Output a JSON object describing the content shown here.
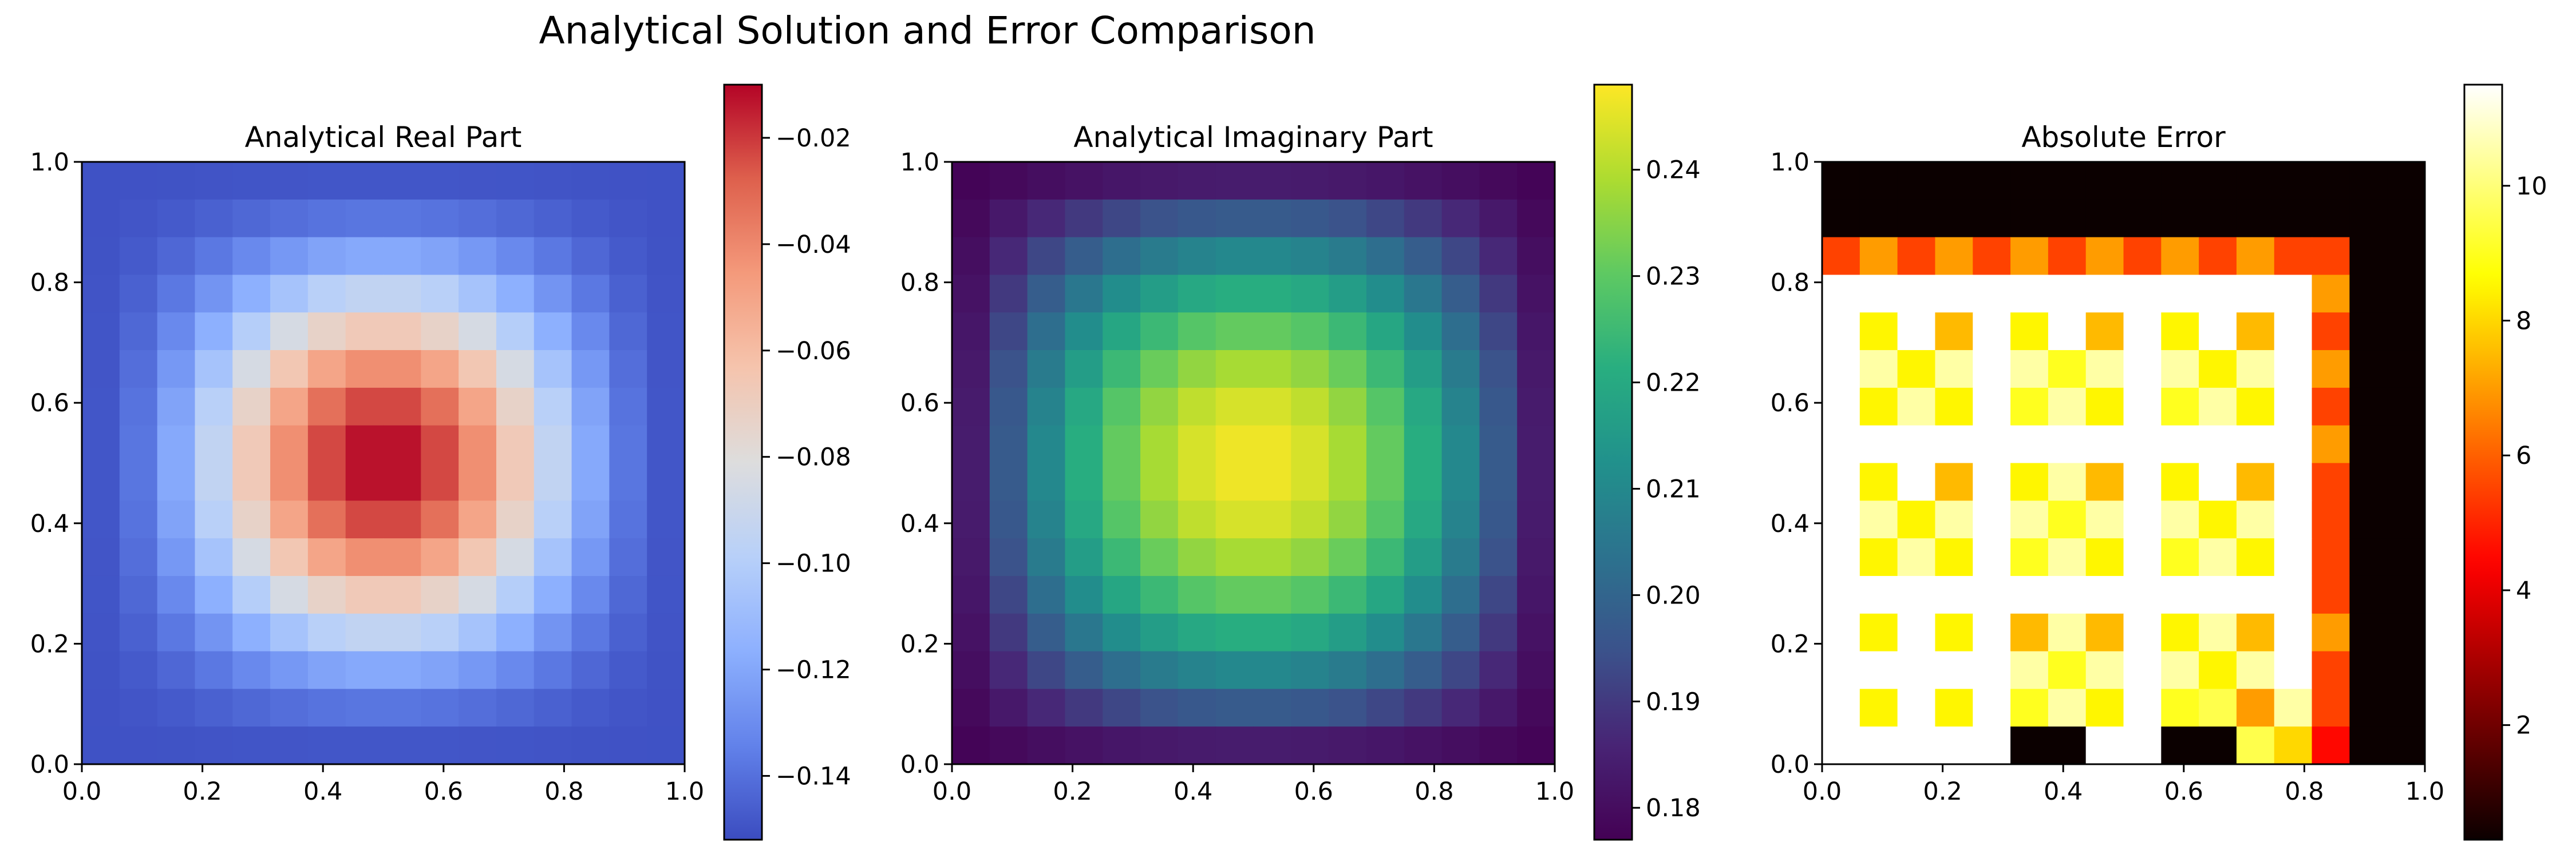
{
  "suptitle": "Analytical Solution and Error Comparison",
  "chart_data": [
    {
      "type": "heatmap",
      "title": "Analytical Real Part",
      "colormap": "coolwarm",
      "xlim": [
        0,
        1
      ],
      "ylim": [
        0,
        1
      ],
      "xticks": [
        "0.0",
        "0.2",
        "0.4",
        "0.6",
        "0.8",
        "1.0"
      ],
      "yticks": [
        "0.0",
        "0.2",
        "0.4",
        "0.6",
        "0.8",
        "1.0"
      ],
      "grid_size": 16,
      "formula": "-0.15 + 0.14*sin(pi*x)^2*sin(pi*y)^2",
      "colorbar": {
        "vmin": -0.152,
        "vmax": -0.01,
        "ticks": [
          -0.02,
          -0.04,
          -0.06,
          -0.08,
          -0.1,
          -0.12,
          -0.14
        ],
        "tick_labels": [
          "−0.02",
          "−0.04",
          "−0.06",
          "−0.08",
          "−0.10",
          "−0.12",
          "−0.14"
        ]
      }
    },
    {
      "type": "heatmap",
      "title": "Analytical Imaginary Part",
      "colormap": "viridis",
      "xlim": [
        0,
        1
      ],
      "ylim": [
        0,
        1
      ],
      "xticks": [
        "0.0",
        "0.2",
        "0.4",
        "0.6",
        "0.8",
        "1.0"
      ],
      "yticks": [
        "0.0",
        "0.2",
        "0.4",
        "0.6",
        "0.8",
        "1.0"
      ],
      "grid_size": 16,
      "formula": "0.177 + 0.07*sin(pi*x)*sin(pi*y)",
      "colorbar": {
        "vmin": 0.177,
        "vmax": 0.248,
        "ticks": [
          0.18,
          0.19,
          0.2,
          0.21,
          0.22,
          0.23,
          0.24
        ],
        "tick_labels": [
          "0.18",
          "0.19",
          "0.20",
          "0.21",
          "0.22",
          "0.23",
          "0.24"
        ]
      }
    },
    {
      "type": "heatmap",
      "title": "Absolute Error",
      "colormap": "hot",
      "xlim": [
        0,
        1
      ],
      "ylim": [
        0,
        1
      ],
      "xticks": [
        "0.0",
        "0.2",
        "0.4",
        "0.6",
        "0.8",
        "1.0"
      ],
      "yticks": [
        "0.0",
        "0.2",
        "0.4",
        "0.6",
        "0.8",
        "1.0"
      ],
      "grid_size": 16,
      "values_rows_top_to_bottom": [
        [
          0.3,
          0.3,
          0.3,
          0.3,
          0.3,
          0.3,
          0.3,
          0.3,
          0.3,
          0.3,
          0.3,
          0.3,
          0.3,
          0.3,
          0.3,
          0.3
        ],
        [
          0.3,
          0.3,
          0.3,
          0.3,
          0.3,
          0.3,
          0.3,
          0.3,
          0.3,
          0.3,
          0.3,
          0.3,
          0.3,
          0.3,
          0.3,
          0.3
        ],
        [
          5.5,
          7.0,
          5.5,
          7.0,
          5.5,
          7.0,
          5.5,
          7.0,
          5.5,
          7.0,
          5.5,
          7.0,
          5.5,
          5.5,
          0.3,
          0.3
        ],
        [
          11.5,
          11.5,
          11.5,
          11.5,
          11.5,
          11.5,
          11.5,
          11.5,
          11.5,
          11.5,
          11.5,
          11.5,
          11.5,
          7.0,
          0.3,
          0.3
        ],
        [
          11.5,
          8.5,
          11.5,
          7.5,
          11.5,
          8.5,
          11.5,
          7.5,
          11.5,
          8.5,
          11.5,
          7.5,
          11.5,
          5.5,
          0.3,
          0.3
        ],
        [
          11.5,
          10.5,
          8.5,
          10.5,
          11.5,
          10.5,
          9.0,
          10.5,
          11.5,
          10.5,
          8.5,
          10.5,
          11.5,
          7.0,
          0.3,
          0.3
        ],
        [
          11.5,
          8.5,
          10.5,
          8.5,
          11.5,
          9.0,
          10.5,
          8.5,
          11.5,
          9.0,
          10.5,
          8.5,
          11.5,
          5.5,
          0.3,
          0.3
        ],
        [
          11.5,
          11.5,
          11.5,
          11.5,
          11.5,
          11.5,
          11.5,
          11.5,
          11.5,
          11.5,
          11.5,
          11.5,
          11.5,
          7.0,
          0.3,
          0.3
        ],
        [
          11.5,
          8.5,
          11.5,
          7.5,
          11.5,
          8.5,
          10.5,
          7.5,
          11.5,
          8.5,
          11.5,
          7.5,
          11.5,
          5.5,
          0.3,
          0.3
        ],
        [
          11.5,
          10.5,
          8.5,
          10.5,
          11.5,
          10.5,
          9.0,
          10.5,
          11.5,
          10.5,
          8.5,
          10.5,
          11.5,
          5.5,
          0.3,
          0.3
        ],
        [
          11.5,
          8.5,
          10.5,
          8.5,
          11.5,
          9.0,
          10.5,
          8.5,
          11.5,
          9.0,
          10.5,
          8.5,
          11.5,
          5.5,
          0.3,
          0.3
        ],
        [
          11.5,
          11.5,
          11.5,
          11.5,
          11.5,
          11.5,
          11.5,
          11.5,
          11.5,
          11.5,
          11.5,
          11.5,
          11.5,
          5.5,
          0.3,
          0.3
        ],
        [
          11.5,
          8.5,
          11.5,
          8.5,
          11.5,
          7.5,
          10.5,
          7.5,
          11.5,
          8.5,
          10.5,
          7.5,
          11.5,
          7.0,
          0.3,
          0.3
        ],
        [
          11.5,
          11.5,
          11.5,
          11.5,
          11.5,
          10.5,
          9.0,
          10.5,
          11.5,
          10.5,
          8.5,
          10.5,
          11.5,
          5.5,
          0.3,
          0.3
        ],
        [
          11.5,
          8.5,
          11.5,
          8.5,
          11.5,
          9.0,
          10.5,
          8.5,
          11.5,
          9.0,
          9.5,
          7.0,
          10.5,
          5.5,
          0.3,
          0.3
        ],
        [
          11.5,
          11.5,
          11.5,
          11.5,
          11.5,
          0.3,
          0.3,
          11.5,
          11.5,
          0.3,
          0.3,
          9.5,
          8.0,
          4.5,
          0.3,
          0.3
        ]
      ],
      "colorbar": {
        "vmin": 0.3,
        "vmax": 11.5,
        "ticks": [
          2,
          4,
          6,
          8,
          10
        ],
        "tick_labels": [
          "2",
          "4",
          "6",
          "8",
          "10"
        ]
      }
    }
  ]
}
